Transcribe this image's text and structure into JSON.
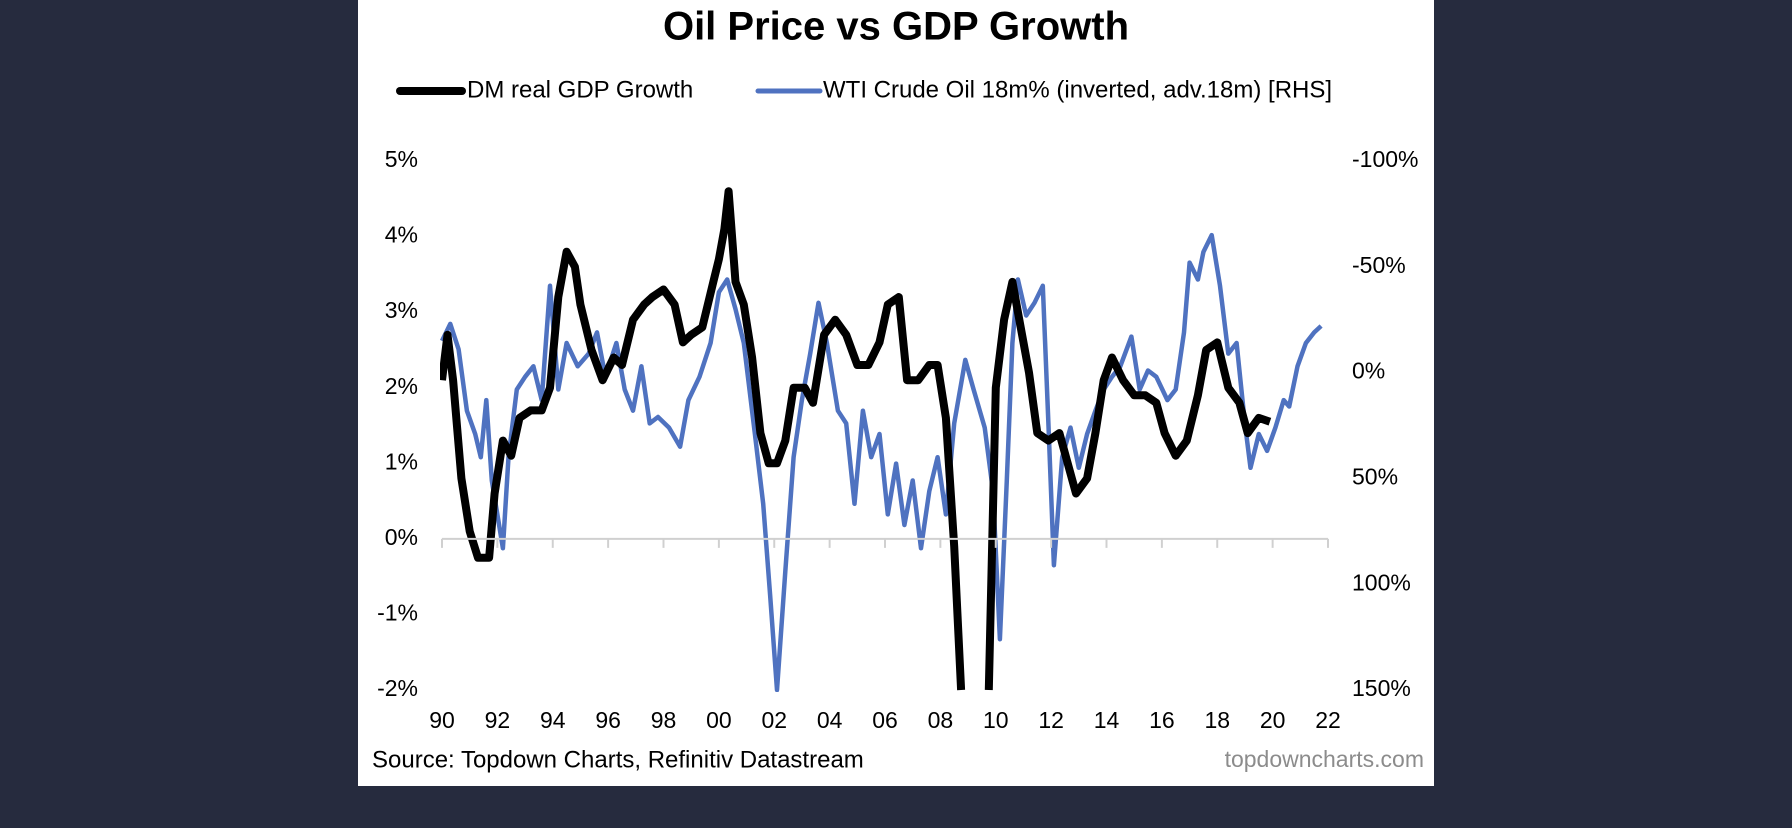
{
  "chart_data": {
    "type": "line",
    "title": "Oil Price vs GDP Growth",
    "source": "Source: Topdown Charts, Refinitiv Datastream",
    "watermark": "topdowncharts.com",
    "xlim": [
      1990,
      2022
    ],
    "xticks": [
      {
        "value": 1990,
        "label": "90"
      },
      {
        "value": 1992,
        "label": "92"
      },
      {
        "value": 1994,
        "label": "94"
      },
      {
        "value": 1996,
        "label": "96"
      },
      {
        "value": 1998,
        "label": "98"
      },
      {
        "value": 2000,
        "label": "00"
      },
      {
        "value": 2002,
        "label": "02"
      },
      {
        "value": 2004,
        "label": "04"
      },
      {
        "value": 2006,
        "label": "06"
      },
      {
        "value": 2008,
        "label": "08"
      },
      {
        "value": 2010,
        "label": "10"
      },
      {
        "value": 2012,
        "label": "12"
      },
      {
        "value": 2014,
        "label": "14"
      },
      {
        "value": 2016,
        "label": "16"
      },
      {
        "value": 2018,
        "label": "18"
      },
      {
        "value": 2020,
        "label": "20"
      },
      {
        "value": 2022,
        "label": "22"
      }
    ],
    "ylim": [
      -2,
      5
    ],
    "yticks": [
      {
        "value": -2,
        "label": "-2%"
      },
      {
        "value": -1,
        "label": "-1%"
      },
      {
        "value": 0,
        "label": "0%"
      },
      {
        "value": 1,
        "label": "1%"
      },
      {
        "value": 2,
        "label": "2%"
      },
      {
        "value": 3,
        "label": "3%"
      },
      {
        "value": 4,
        "label": "4%"
      },
      {
        "value": 5,
        "label": "5%"
      }
    ],
    "y2lim": [
      150,
      -100
    ],
    "y2ticks": [
      {
        "value": 150,
        "label": "150%"
      },
      {
        "value": 100,
        "label": "100%"
      },
      {
        "value": 50,
        "label": "50%"
      },
      {
        "value": 0,
        "label": "0%"
      },
      {
        "value": -50,
        "label": "-50%"
      },
      {
        "value": -100,
        "label": "-100%"
      }
    ],
    "series": [
      {
        "name": "DM real GDP Growth",
        "color": "#000000",
        "x": [
          1990.0,
          1990.2,
          1990.4,
          1990.7,
          1991.0,
          1991.3,
          1991.7,
          1991.9,
          1992.2,
          1992.5,
          1992.8,
          1993.2,
          1993.6,
          1993.9,
          1994.2,
          1994.5,
          1994.8,
          1995.0,
          1995.4,
          1995.8,
          1996.2,
          1996.5,
          1996.9,
          1997.3,
          1997.6,
          1998.0,
          1998.4,
          1998.7,
          1999.0,
          1999.4,
          1999.8,
          2000.0,
          2000.2,
          2000.35,
          2000.6,
          2000.9,
          2001.2,
          2001.5,
          2001.8,
          2002.1,
          2002.4,
          2002.7,
          2003.1,
          2003.4,
          2003.8,
          2004.2,
          2004.6,
          2005.0,
          2005.4,
          2005.8,
          2006.1,
          2006.5,
          2006.8,
          2007.2,
          2007.6,
          2007.9,
          2008.2,
          2008.5,
          2008.75,
          2009.2,
          2009.75,
          2010.0,
          2010.3,
          2010.6,
          2010.9,
          2011.2,
          2011.5,
          2011.9,
          2012.3,
          2012.6,
          2012.9,
          2013.3,
          2013.6,
          2013.9,
          2014.2,
          2014.6,
          2015.0,
          2015.4,
          2015.8,
          2016.1,
          2016.5,
          2016.9,
          2017.3,
          2017.6,
          2018.0,
          2018.4,
          2018.8,
          2019.1,
          2019.5,
          2019.9
        ],
        "values": [
          2.1,
          2.7,
          2.1,
          0.8,
          0.1,
          -0.25,
          -0.25,
          0.6,
          1.3,
          1.1,
          1.6,
          1.7,
          1.7,
          2.0,
          3.2,
          3.8,
          3.6,
          3.1,
          2.5,
          2.1,
          2.4,
          2.3,
          2.9,
          3.1,
          3.2,
          3.3,
          3.1,
          2.6,
          2.7,
          2.8,
          3.4,
          3.7,
          4.1,
          4.6,
          3.4,
          3.1,
          2.4,
          1.4,
          1.0,
          1.0,
          1.3,
          2.0,
          2.0,
          1.8,
          2.7,
          2.9,
          2.7,
          2.3,
          2.3,
          2.6,
          3.1,
          3.2,
          2.1,
          2.1,
          2.3,
          2.3,
          1.6,
          -0.1,
          -2.0,
          null,
          -2.0,
          2.0,
          2.9,
          3.4,
          2.8,
          2.2,
          1.4,
          1.3,
          1.4,
          1.0,
          0.6,
          0.8,
          1.4,
          2.1,
          2.4,
          2.1,
          1.9,
          1.9,
          1.8,
          1.4,
          1.1,
          1.3,
          1.9,
          2.5,
          2.6,
          2.0,
          1.8,
          1.4,
          1.6,
          1.55
        ]
      },
      {
        "name": "WTI Crude Oil 18m% (inverted, adv.18m) [RHS]",
        "color": "#4f72c0",
        "axis": "y2",
        "x": [
          1990.0,
          1990.3,
          1990.6,
          1990.9,
          1991.2,
          1991.4,
          1991.6,
          1991.8,
          1992.2,
          1992.4,
          1992.7,
          1993.0,
          1993.3,
          1993.6,
          1993.9,
          1994.2,
          1994.5,
          1994.9,
          1995.3,
          1995.6,
          1995.9,
          1996.3,
          1996.6,
          1996.9,
          1997.2,
          1997.5,
          1997.8,
          1998.2,
          1998.6,
          1998.9,
          1999.3,
          1999.7,
          2000.0,
          2000.3,
          2000.6,
          2000.9,
          2001.3,
          2001.6,
          2001.85,
          2002.1,
          2002.4,
          2002.7,
          2003.0,
          2003.3,
          2003.6,
          2003.9,
          2004.3,
          2004.6,
          2004.9,
          2005.2,
          2005.5,
          2005.8,
          2006.1,
          2006.4,
          2006.7,
          2007.0,
          2007.3,
          2007.6,
          2007.9,
          2008.2,
          2008.5,
          2008.9,
          2009.2,
          2009.6,
          2009.9,
          2010.15,
          2010.4,
          2010.6,
          2010.8,
          2011.1,
          2011.4,
          2011.7,
          2011.9,
          2012.1,
          2012.4,
          2012.7,
          2013.0,
          2013.3,
          2013.6,
          2013.9,
          2014.2,
          2014.5,
          2014.9,
          2015.2,
          2015.5,
          2015.8,
          2016.2,
          2016.5,
          2016.8,
          2017.0,
          2017.3,
          2017.5,
          2017.8,
          2018.1,
          2018.4,
          2018.7,
          2019.0,
          2019.2,
          2019.5,
          2019.8,
          2020.1,
          2020.4,
          2020.6,
          2020.9,
          2021.2,
          2021.5,
          2021.75
        ],
        "values": [
          -15,
          -23,
          -11,
          18,
          29,
          40,
          13,
          51,
          83,
          40,
          8,
          2,
          -3,
          13,
          -41,
          8,
          -14,
          -3,
          -9,
          -19,
          2,
          -14,
          8,
          18,
          -3,
          24,
          21,
          26,
          35,
          13,
          2,
          -14,
          -38,
          -44,
          -30,
          -14,
          29,
          62,
          105,
          150,
          94,
          40,
          13,
          -9,
          -33,
          -14,
          18,
          24,
          62,
          18,
          40,
          29,
          67,
          43,
          72,
          51,
          83,
          56,
          40,
          67,
          24,
          -6,
          8,
          26,
          56,
          126,
          51,
          -14,
          -44,
          -27,
          -33,
          -41,
          24,
          91,
          40,
          26,
          45,
          29,
          18,
          8,
          2,
          -3,
          -17,
          8,
          -1,
          2,
          13,
          8,
          -19,
          -52,
          -44,
          -57,
          -65,
          -41,
          -9,
          -14,
          24,
          45,
          29,
          37,
          26,
          13,
          16,
          -3,
          -14,
          -19,
          -22
        ]
      }
    ]
  }
}
